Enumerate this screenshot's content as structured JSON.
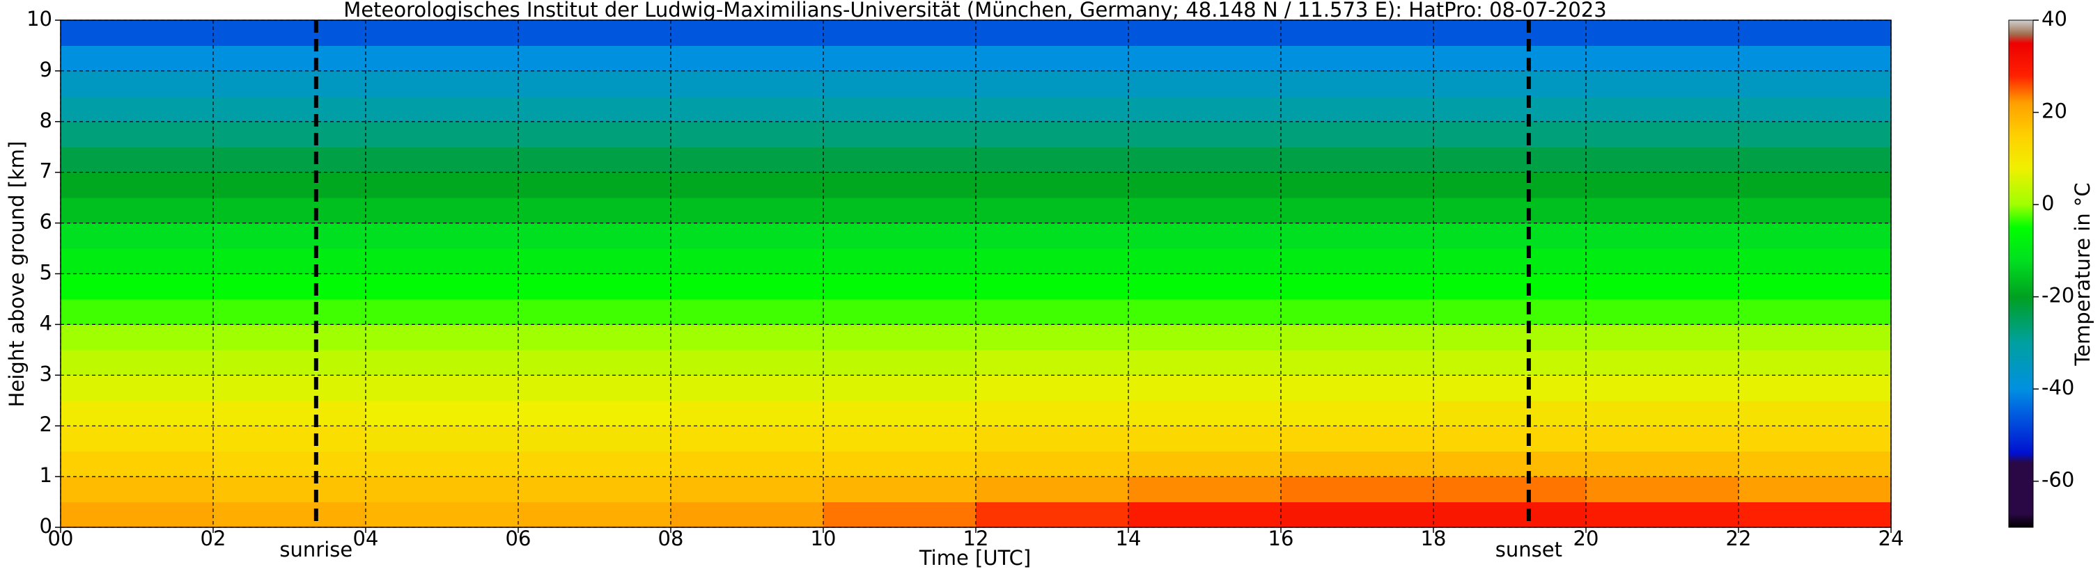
{
  "chart_data": {
    "type": "heatmap",
    "title": "Meteorologisches Institut der Ludwig-Maximilians-Universität (München, Germany; 48.148 N / 11.573 E):    HatPro: 08-07-2023",
    "x_label": "Time [UTC]",
    "y_label": "Height above ground [km]",
    "colorbar_label": "Temperature in °C",
    "x": [
      0,
      2,
      4,
      6,
      8,
      10,
      12,
      14,
      16,
      18,
      20,
      22,
      24
    ],
    "y": [
      0,
      0.5,
      1,
      1.5,
      2,
      2.5,
      3,
      3.5,
      4,
      4.5,
      5,
      5.5,
      6,
      6.5,
      7,
      7.5,
      8,
      8.5,
      9,
      9.5,
      10
    ],
    "values": [
      [
        21,
        20,
        19,
        20,
        22,
        24,
        27,
        29,
        30,
        30,
        29,
        28
      ],
      [
        18,
        17,
        17,
        17,
        18,
        19,
        21,
        23,
        24,
        24,
        23,
        22
      ],
      [
        15,
        14,
        14,
        14,
        15,
        15,
        16,
        17,
        18,
        18,
        18,
        17
      ],
      [
        12,
        12,
        11,
        11,
        12,
        12,
        13,
        13,
        14,
        14,
        14,
        14
      ],
      [
        9,
        9,
        8,
        8,
        9,
        9,
        10,
        10,
        10,
        11,
        11,
        11
      ],
      [
        6,
        6,
        6,
        6,
        6,
        6,
        7,
        7,
        7,
        7,
        7,
        7
      ],
      [
        3,
        3,
        3,
        3,
        3,
        3,
        4,
        4,
        4,
        4,
        4,
        4
      ],
      [
        0,
        0,
        0,
        0,
        0,
        0,
        0,
        0,
        1,
        1,
        1,
        1
      ],
      [
        -3,
        -3,
        -3,
        -3,
        -3,
        -3,
        -3,
        -3,
        -3,
        -3,
        -3,
        -3
      ],
      [
        -6,
        -6,
        -6,
        -6,
        -6,
        -6,
        -6,
        -6,
        -6,
        -6,
        -6,
        -6
      ],
      [
        -9,
        -9,
        -9,
        -9,
        -9,
        -9,
        -9,
        -9,
        -9,
        -9,
        -9,
        -9
      ],
      [
        -12,
        -12,
        -12,
        -12,
        -12,
        -12,
        -12,
        -12,
        -12,
        -12,
        -12,
        -12
      ],
      [
        -16,
        -16,
        -16,
        -16,
        -16,
        -16,
        -16,
        -16,
        -16,
        -16,
        -16,
        -16
      ],
      [
        -19,
        -19,
        -19,
        -19,
        -19,
        -19,
        -19,
        -19,
        -19,
        -19,
        -19,
        -19
      ],
      [
        -23,
        -23,
        -23,
        -23,
        -23,
        -23,
        -23,
        -23,
        -23,
        -23,
        -23,
        -23
      ],
      [
        -27,
        -27,
        -27,
        -27,
        -27,
        -27,
        -27,
        -27,
        -27,
        -27,
        -27,
        -27
      ],
      [
        -31,
        -31,
        -31,
        -31,
        -31,
        -31,
        -31,
        -31,
        -31,
        -31,
        -31,
        -31
      ],
      [
        -35,
        -35,
        -35,
        -35,
        -35,
        -35,
        -35,
        -35,
        -35,
        -35,
        -35,
        -35
      ],
      [
        -40,
        -40,
        -40,
        -40,
        -40,
        -40,
        -40,
        -40,
        -40,
        -40,
        -40,
        -40
      ],
      [
        -46,
        -46,
        -46,
        -46,
        -46,
        -46,
        -46,
        -46,
        -46,
        -46,
        -46,
        -46
      ]
    ],
    "xlim": [
      0,
      24
    ],
    "ylim": [
      0,
      10
    ],
    "xticks": [
      {
        "value": 0,
        "label": "00"
      },
      {
        "value": 2,
        "label": "02"
      },
      {
        "value": 4,
        "label": "04"
      },
      {
        "value": 6,
        "label": "06"
      },
      {
        "value": 8,
        "label": "08"
      },
      {
        "value": 10,
        "label": "10"
      },
      {
        "value": 12,
        "label": "12"
      },
      {
        "value": 14,
        "label": "14"
      },
      {
        "value": 16,
        "label": "16"
      },
      {
        "value": 18,
        "label": "18"
      },
      {
        "value": 20,
        "label": "20"
      },
      {
        "value": 22,
        "label": "22"
      },
      {
        "value": 24,
        "label": "24"
      }
    ],
    "yticks": [
      0,
      1,
      2,
      3,
      4,
      5,
      6,
      7,
      8,
      9,
      10
    ],
    "clim": [
      -70,
      40
    ],
    "cticks": [
      -60,
      -40,
      -20,
      0,
      20,
      40
    ],
    "colorscale": {
      "values": [
        -70,
        -67,
        -56,
        -54,
        -45,
        -40,
        -30,
        -20,
        -12,
        -5,
        0,
        8,
        15,
        22,
        28,
        35,
        37,
        40
      ],
      "colors": [
        "#000000",
        "#2a0845",
        "#2a0845",
        "#0010d0",
        "#0060e0",
        "#0090e0",
        "#00a0a0",
        "#00a020",
        "#00e020",
        "#00ff00",
        "#a0ff00",
        "#f0f000",
        "#ffd000",
        "#ffa000",
        "#ff2000",
        "#ee0000",
        "#a07050",
        "#d0d0d0"
      ]
    },
    "grid": true,
    "vlines": [
      {
        "x": 3.35,
        "label": "sunrise"
      },
      {
        "x": 19.25,
        "label": "sunset"
      }
    ]
  }
}
